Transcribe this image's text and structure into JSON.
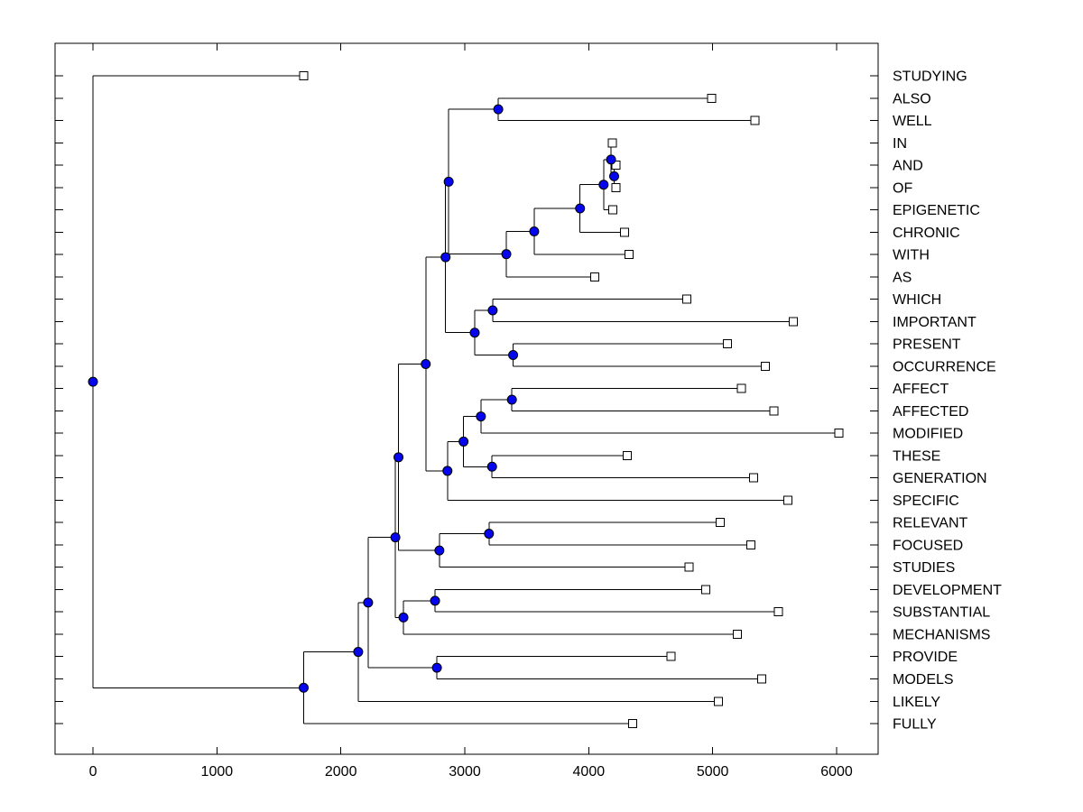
{
  "figure": {
    "background": "#ffffff",
    "description": "Hierarchical cluster tree (dendrogram) of words, horizontal orientation, leaves on right"
  },
  "chart_data": {
    "type": "dendrogram",
    "orientation": "horizontal-right",
    "grid": false,
    "legend": false,
    "title": "",
    "xlabel": "",
    "ylabel": "",
    "x_axis": {
      "lim": [
        -306,
        6335
      ],
      "ticks": [
        0,
        1000,
        2000,
        3000,
        4000,
        5000,
        6000
      ],
      "tick_labels": [
        "0",
        "1000",
        "2000",
        "3000",
        "4000",
        "5000",
        "6000"
      ]
    },
    "leaves": [
      {
        "label": "STUDYING",
        "dist": 1700
      },
      {
        "label": "ALSO",
        "dist": 4990
      },
      {
        "label": "WELL",
        "dist": 5340
      },
      {
        "label": "IN",
        "dist": 4190
      },
      {
        "label": "AND",
        "dist": 4220
      },
      {
        "label": "OF",
        "dist": 4220
      },
      {
        "label": "EPIGENETIC",
        "dist": 4195
      },
      {
        "label": "CHRONIC",
        "dist": 4290
      },
      {
        "label": "WITH",
        "dist": 4325
      },
      {
        "label": "AS",
        "dist": 4050
      },
      {
        "label": "WHICH",
        "dist": 4790
      },
      {
        "label": "IMPORTANT",
        "dist": 5650
      },
      {
        "label": "PRESENT",
        "dist": 5120
      },
      {
        "label": "OCCURRENCE",
        "dist": 5425
      },
      {
        "label": "AFFECT",
        "dist": 5230
      },
      {
        "label": "AFFECTED",
        "dist": 5495
      },
      {
        "label": "MODIFIED",
        "dist": 6020
      },
      {
        "label": "THESE",
        "dist": 4310
      },
      {
        "label": "GENERATION",
        "dist": 5330
      },
      {
        "label": "SPECIFIC",
        "dist": 5605
      },
      {
        "label": "RELEVANT",
        "dist": 5060
      },
      {
        "label": "FOCUSED",
        "dist": 5310
      },
      {
        "label": "STUDIES",
        "dist": 4810
      },
      {
        "label": "DEVELOPMENT",
        "dist": 4945
      },
      {
        "label": "SUBSTANTIAL",
        "dist": 5530
      },
      {
        "label": "MECHANISMS",
        "dist": 5200
      },
      {
        "label": "PROVIDE",
        "dist": 4665
      },
      {
        "label": "MODELS",
        "dist": 5395
      },
      {
        "label": "LIKELY",
        "dist": 5045
      },
      {
        "label": "FULLY",
        "dist": 4355
      }
    ],
    "nodes": [
      {
        "id": "root",
        "dist": 0,
        "children": [
          "STUDYING",
          "nAB"
        ]
      },
      {
        "id": "nAB",
        "dist": 1700,
        "children": [
          "nZ",
          "FULLY"
        ]
      },
      {
        "id": "nZ",
        "dist": 2140,
        "children": [
          "nV",
          "LIKELY"
        ]
      },
      {
        "id": "nV",
        "dist": 2220,
        "children": [
          "nS",
          "nAA"
        ]
      },
      {
        "id": "nS",
        "dist": 2440,
        "children": [
          "nP",
          "nY"
        ]
      },
      {
        "id": "nP",
        "dist": 2465,
        "children": [
          "nK",
          "nT"
        ]
      },
      {
        "id": "nK",
        "dist": 2685,
        "children": [
          "nF",
          "nQ"
        ]
      },
      {
        "id": "nF",
        "dist": 2845,
        "children": [
          "nG",
          "nI"
        ]
      },
      {
        "id": "nG",
        "dist": 2870,
        "children": [
          "nAW",
          "nW"
        ]
      },
      {
        "id": "nAW",
        "dist": 3270,
        "children": [
          "ALSO",
          "WELL"
        ]
      },
      {
        "id": "nW",
        "dist": 3335,
        "children": [
          "nE",
          "AS"
        ]
      },
      {
        "id": "nE",
        "dist": 3560,
        "children": [
          "nD",
          "WITH"
        ]
      },
      {
        "id": "nD",
        "dist": 3930,
        "children": [
          "nC",
          "CHRONIC"
        ]
      },
      {
        "id": "nC",
        "dist": 4120,
        "children": [
          "nA",
          "EPIGENETIC"
        ]
      },
      {
        "id": "nA",
        "dist": 4180,
        "children": [
          "IN",
          "nB"
        ]
      },
      {
        "id": "nB",
        "dist": 4205,
        "children": [
          "AND",
          "OF"
        ]
      },
      {
        "id": "nI",
        "dist": 3080,
        "children": [
          "nH",
          "nJ"
        ]
      },
      {
        "id": "nH",
        "dist": 3225,
        "children": [
          "WHICH",
          "IMPORTANT"
        ]
      },
      {
        "id": "nJ",
        "dist": 3390,
        "children": [
          "PRESENT",
          "OCCURRENCE"
        ]
      },
      {
        "id": "nQ",
        "dist": 2860,
        "children": [
          "nN",
          "SPECIFIC"
        ]
      },
      {
        "id": "nN",
        "dist": 2990,
        "children": [
          "nM",
          "nR"
        ]
      },
      {
        "id": "nM",
        "dist": 3130,
        "children": [
          "nL",
          "MODIFIED"
        ]
      },
      {
        "id": "nL",
        "dist": 3380,
        "children": [
          "AFFECT",
          "AFFECTED"
        ]
      },
      {
        "id": "nR",
        "dist": 3220,
        "children": [
          "THESE",
          "GENERATION"
        ]
      },
      {
        "id": "nT",
        "dist": 2795,
        "children": [
          "nU",
          "STUDIES"
        ]
      },
      {
        "id": "nU",
        "dist": 3195,
        "children": [
          "RELEVANT",
          "FOCUSED"
        ]
      },
      {
        "id": "nY",
        "dist": 2505,
        "children": [
          "nX",
          "MECHANISMS"
        ]
      },
      {
        "id": "nX",
        "dist": 2760,
        "children": [
          "DEVELOPMENT",
          "SUBSTANTIAL"
        ]
      },
      {
        "id": "nAA",
        "dist": 2775,
        "children": [
          "PROVIDE",
          "MODELS"
        ]
      }
    ],
    "style": {
      "line_color": "#000000",
      "box_color": "#000000",
      "internal_node_fill": "#0505ee",
      "internal_node_stroke": "#000000",
      "leaf_marker_fill": "#ffffff",
      "leaf_marker_stroke": "#000000",
      "text_color": "#000000"
    }
  }
}
